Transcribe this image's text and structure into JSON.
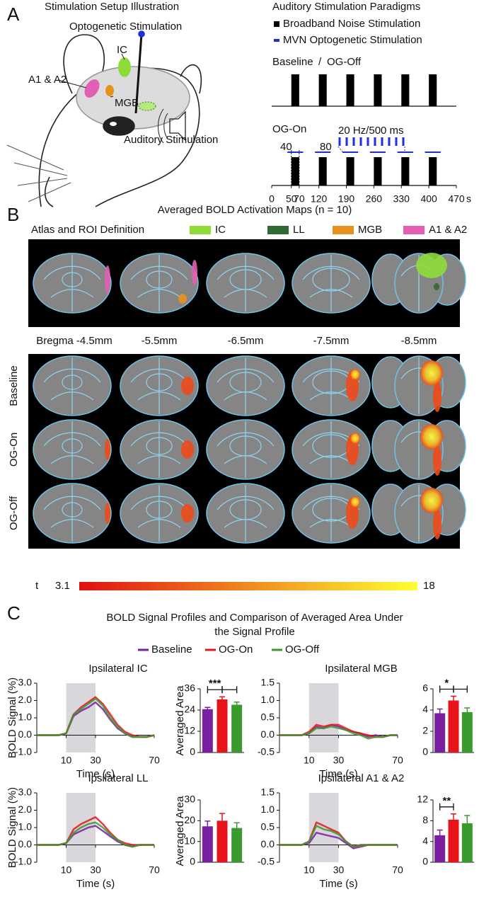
{
  "panel_a": {
    "label": "A",
    "setup_title": "Stimulation Setup Illustration",
    "optogenetic": "Optogenetic Stimulation",
    "ic": "IC",
    "a1a2": "A1 & A2",
    "mgb": "MGB",
    "auditory": "Auditory Stimulation",
    "paradigm_title": "Auditory Stimulation Paradigms",
    "legend": [
      {
        "text": "Broadband Noise Stimulation",
        "color": "#000000"
      },
      {
        "text": "MVN Optogenetic Stimulation",
        "color": "#1f2fd6"
      }
    ],
    "baseline": {
      "text": "Baseline",
      "color": "#7a1fa2"
    },
    "separator": "/",
    "og_off": {
      "text": "OG-Off",
      "color": "#3a9a2e"
    },
    "og_on": {
      "text": "OG-On",
      "color": "#e8141b"
    },
    "pulse_label": "20 Hz/500 ms",
    "og_window_labels": [
      40,
      80
    ],
    "timeline": {
      "xlim": [
        0,
        470
      ],
      "xticks": [
        0,
        50,
        70,
        120,
        190,
        260,
        330,
        400,
        470
      ],
      "unit": "s",
      "noise_blocks": [
        [
          50,
          70
        ],
        [
          120,
          140
        ],
        [
          190,
          210
        ],
        [
          260,
          280
        ],
        [
          330,
          350
        ],
        [
          400,
          420
        ]
      ],
      "og_blocks": [
        [
          40,
          80
        ],
        [
          110,
          150
        ],
        [
          180,
          220
        ],
        [
          250,
          290
        ],
        [
          320,
          360
        ],
        [
          390,
          430
        ]
      ]
    }
  },
  "panel_b": {
    "label": "B",
    "title": "Averaged BOLD Activation Maps (n = 10)",
    "atlas_label": "Atlas and ROI Definition",
    "rois": [
      {
        "name": "IC",
        "color": "#8fdb3a"
      },
      {
        "name": "LL",
        "color": "#2f6b33"
      },
      {
        "name": "MGB",
        "color": "#e8901e"
      },
      {
        "name": "A1 & A2",
        "color": "#e35fb4"
      }
    ],
    "bregma": [
      "Bregma -4.5mm",
      "-5.5mm",
      "-6.5mm",
      "-7.5mm",
      "-8.5mm"
    ],
    "conditions": [
      {
        "name": "Baseline",
        "color": "#7a1fa2"
      },
      {
        "name": "OG-On",
        "color": "#e8141b"
      },
      {
        "name": "OG-Off",
        "color": "#3a9a2e"
      }
    ],
    "colorbar": {
      "label": "t",
      "min": 3.1,
      "max": 18
    }
  },
  "panel_c": {
    "label": "C",
    "title_lines": [
      "BOLD Signal Profiles and Comparison of Averaged Area Under",
      "the Signal Profile"
    ]
  },
  "chart_data": [
    {
      "type": "line",
      "title": "Ipsilateral IC",
      "xlabel": "Time (s)",
      "ylabel": "BOLD Signal (%)",
      "x": [
        -10,
        -5,
        0,
        5,
        10,
        15,
        20,
        25,
        30,
        35,
        40,
        45,
        50,
        55,
        60,
        65,
        70
      ],
      "xlim": [
        -10,
        70
      ],
      "xticks": [
        10,
        30,
        70
      ],
      "stimulus_window": [
        10,
        30
      ],
      "ylim": [
        -1,
        3
      ],
      "yticks": [
        {
          "value": -1,
          "label": "-1.0"
        },
        {
          "value": 0,
          "label": "0.0"
        },
        {
          "value": 1,
          "label": "1.0"
        },
        {
          "value": 2,
          "label": "2.0"
        },
        {
          "value": 3,
          "label": "3.0"
        }
      ],
      "series": [
        {
          "name": "Baseline",
          "color": "#7a1fa2",
          "values": [
            0,
            0,
            0,
            0,
            0.1,
            1.1,
            1.4,
            1.6,
            1.9,
            1.5,
            0.9,
            0.4,
            0.1,
            -0.1,
            -0.1,
            -0.1,
            0
          ]
        },
        {
          "name": "OG-On",
          "color": "#e8141b",
          "values": [
            0,
            0,
            0,
            0,
            0.1,
            1.2,
            1.6,
            1.9,
            2.2,
            1.8,
            1.2,
            0.6,
            0.2,
            0,
            -0.1,
            -0.1,
            0
          ]
        },
        {
          "name": "OG-Off",
          "color": "#3a9a2e",
          "values": [
            0,
            0,
            0,
            0,
            0.1,
            1.2,
            1.5,
            1.8,
            2.1,
            1.7,
            1.0,
            0.5,
            0.1,
            -0.1,
            -0.1,
            -0.1,
            0
          ]
        }
      ]
    },
    {
      "type": "bar",
      "ylabel": "Averaged Area",
      "ylim": [
        0,
        36
      ],
      "yticks": [
        0,
        12,
        24,
        36
      ],
      "values": [
        24.5,
        30,
        27
      ],
      "errors": [
        1,
        1.5,
        1.5
      ],
      "colors": [
        "#7a1fa2",
        "#e8141b",
        "#3a9a2e"
      ],
      "significance": {
        "label": "***",
        "pairs": [
          [
            0,
            1
          ],
          [
            1,
            2
          ]
        ]
      }
    },
    {
      "type": "line",
      "title": "Ipsilateral MGB",
      "xlabel": "Time (s)",
      "x": [
        -10,
        -5,
        0,
        5,
        10,
        15,
        20,
        25,
        30,
        35,
        40,
        45,
        50,
        55,
        60,
        65,
        70
      ],
      "xlim": [
        -10,
        70
      ],
      "xticks": [
        10,
        30,
        70
      ],
      "stimulus_window": [
        10,
        30
      ],
      "ylim": [
        -0.5,
        1.5
      ],
      "yticks": [
        -0.5,
        {
          "value": 0,
          "label": "0.0"
        },
        0.5,
        {
          "value": 1,
          "label": "1.0"
        },
        1.5
      ],
      "series": [
        {
          "name": "Baseline",
          "color": "#7a1fa2",
          "values": [
            0,
            0,
            0,
            0,
            0.05,
            0.25,
            0.2,
            0.3,
            0.25,
            0.15,
            0.1,
            0.05,
            -0.05,
            0,
            -0.05,
            0,
            0
          ]
        },
        {
          "name": "OG-On",
          "color": "#e8141b",
          "values": [
            0,
            0,
            0,
            0,
            0.1,
            0.3,
            0.25,
            0.3,
            0.3,
            0.2,
            0.1,
            0.05,
            0,
            -0.05,
            -0.05,
            0,
            0
          ]
        },
        {
          "name": "OG-Off",
          "color": "#3a9a2e",
          "values": [
            0,
            0,
            0,
            0,
            0.05,
            0.2,
            0.2,
            0.25,
            0.2,
            0.15,
            0.05,
            0,
            -0.1,
            -0.05,
            -0.05,
            0,
            0
          ]
        }
      ]
    },
    {
      "type": "bar",
      "ylim": [
        0,
        6
      ],
      "yticks": [
        0,
        2,
        4,
        6
      ],
      "values": [
        3.7,
        4.9,
        3.8
      ],
      "errors": [
        0.4,
        0.4,
        0.4
      ],
      "colors": [
        "#7a1fa2",
        "#e8141b",
        "#3a9a2e"
      ],
      "significance": {
        "label": "*",
        "pairs": [
          [
            0,
            1
          ],
          [
            1,
            2
          ]
        ]
      }
    },
    {
      "type": "line",
      "title": "Ipsilateral LL",
      "xlabel": "Time (s)",
      "ylabel": "BOLD Signal (%)",
      "x": [
        -10,
        -5,
        0,
        5,
        10,
        15,
        20,
        25,
        30,
        35,
        40,
        45,
        50,
        55,
        60,
        65,
        70
      ],
      "xlim": [
        -10,
        70
      ],
      "xticks": [
        10,
        30,
        70
      ],
      "stimulus_window": [
        10,
        30
      ],
      "ylim": [
        -1,
        3
      ],
      "yticks": [
        {
          "value": -1,
          "label": "-1.0"
        },
        {
          "value": 0,
          "label": "0.0"
        },
        {
          "value": 1,
          "label": "1.0"
        },
        {
          "value": 2,
          "label": "2.0"
        },
        {
          "value": 3,
          "label": "3.0"
        }
      ],
      "series": [
        {
          "name": "Baseline",
          "color": "#7a1fa2",
          "values": [
            0,
            0,
            0,
            0,
            0.1,
            0.6,
            0.8,
            1.0,
            1.1,
            0.8,
            0.5,
            0.2,
            0,
            -0.1,
            0,
            0,
            0
          ]
        },
        {
          "name": "OG-On",
          "color": "#e8141b",
          "values": [
            0,
            0,
            0,
            0,
            0.1,
            0.9,
            1.2,
            1.4,
            1.6,
            1.2,
            0.7,
            0.3,
            0.1,
            0,
            0,
            0,
            0
          ]
        },
        {
          "name": "OG-Off",
          "color": "#3a9a2e",
          "values": [
            0,
            0,
            0,
            0,
            0.1,
            0.7,
            1.0,
            1.2,
            1.3,
            1.0,
            0.6,
            0.3,
            0,
            -0.1,
            0,
            0,
            0
          ]
        }
      ]
    },
    {
      "type": "bar",
      "ylabel": "Averaged Area",
      "ylim": [
        0,
        30
      ],
      "yticks": [
        0,
        10,
        20,
        30
      ],
      "values": [
        17.3,
        20,
        16.5
      ],
      "errors": [
        2.5,
        3.5,
        2.5
      ],
      "colors": [
        "#7a1fa2",
        "#e8141b",
        "#3a9a2e"
      ]
    },
    {
      "type": "line",
      "title": "Ipsilateral A1 & A2",
      "xlabel": "Time (s)",
      "x": [
        -10,
        -5,
        0,
        5,
        10,
        15,
        20,
        25,
        30,
        35,
        40,
        45,
        50,
        55,
        60,
        65,
        70
      ],
      "xlim": [
        -10,
        70
      ],
      "xticks": [
        10,
        30,
        70
      ],
      "stimulus_window": [
        10,
        30
      ],
      "ylim": [
        -0.5,
        1.5
      ],
      "yticks": [
        -0.5,
        {
          "value": 0,
          "label": "0.0"
        },
        0.5,
        {
          "value": 1,
          "label": "1.0"
        },
        1.5
      ],
      "series": [
        {
          "name": "Baseline",
          "color": "#7a1fa2",
          "values": [
            0,
            0,
            0,
            0,
            0.05,
            0.35,
            0.3,
            0.25,
            0.2,
            0.05,
            -0.1,
            -0.05,
            0,
            0,
            0,
            0,
            0
          ]
        },
        {
          "name": "OG-On",
          "color": "#e8141b",
          "values": [
            0,
            0,
            0,
            0,
            0.1,
            0.65,
            0.55,
            0.45,
            0.35,
            0.1,
            -0.05,
            0,
            0,
            0,
            0,
            0,
            0
          ]
        },
        {
          "name": "OG-Off",
          "color": "#3a9a2e",
          "values": [
            0,
            0,
            0,
            0,
            0.1,
            0.55,
            0.45,
            0.4,
            0.3,
            0.1,
            -0.05,
            0,
            0,
            0,
            0,
            0,
            0
          ]
        }
      ]
    },
    {
      "type": "bar",
      "ylim": [
        0,
        12
      ],
      "yticks": [
        0,
        4,
        8,
        12
      ],
      "values": [
        5.2,
        8.2,
        7.5
      ],
      "errors": [
        1,
        1.1,
        1.5
      ],
      "colors": [
        "#7a1fa2",
        "#e8141b",
        "#3a9a2e"
      ],
      "significance": {
        "label": "**",
        "pairs": [
          [
            0,
            1
          ]
        ]
      }
    }
  ]
}
